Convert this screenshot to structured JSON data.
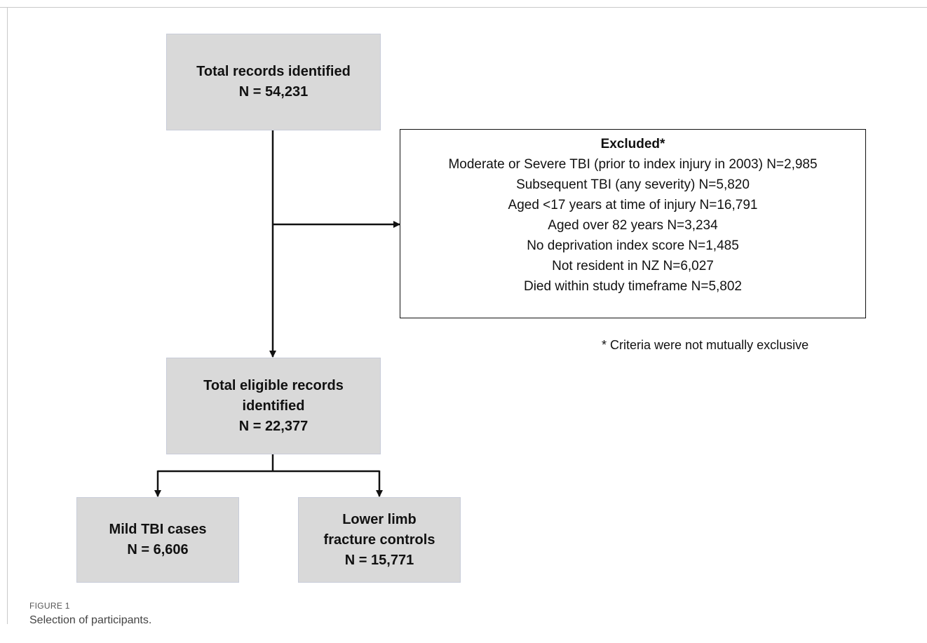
{
  "boxes": {
    "total": {
      "line1": "Total records identified",
      "line2": "N = 54,231"
    },
    "eligible": {
      "line1": "Total eligible records",
      "line2": "identified",
      "line3": "N = 22,377"
    },
    "mild": {
      "line1": "Mild TBI cases",
      "line2": "N = 6,606"
    },
    "controls": {
      "line1": "Lower limb",
      "line2": "fracture controls",
      "line3": "N = 15,771"
    }
  },
  "excluded": {
    "title": "Excluded*",
    "items": [
      "Moderate or Severe TBI (prior to index injury in 2003) N=2,985",
      "Subsequent TBI (any severity) N=5,820",
      "Aged <17 years at time of injury  N=16,791",
      "Aged over 82 years N=3,234",
      "No deprivation index score N=1,485",
      "Not resident in NZ N=6,027",
      "Died within study timeframe N=5,802"
    ]
  },
  "note": "* Criteria were not mutually exclusive",
  "caption": {
    "label": "FIGURE 1",
    "text": "Selection of participants."
  }
}
